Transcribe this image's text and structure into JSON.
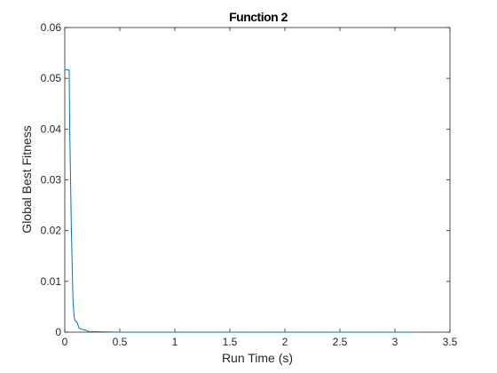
{
  "chart_data": {
    "type": "line",
    "title": "Function 2",
    "xlabel": "Run Time (s)",
    "ylabel": "Global Best Fitness",
    "xlim": [
      0,
      3.5
    ],
    "ylim": [
      0,
      0.06
    ],
    "xticks": [
      0,
      0.5,
      1,
      1.5,
      2,
      2.5,
      3,
      3.5
    ],
    "yticks": [
      0,
      0.01,
      0.02,
      0.03,
      0.04,
      0.05,
      0.06
    ],
    "xtick_labels": [
      "0",
      "0.5",
      "1",
      "1.5",
      "2",
      "2.5",
      "3",
      "3.5"
    ],
    "ytick_labels": [
      "0",
      "0.01",
      "0.02",
      "0.03",
      "0.04",
      "0.05",
      "0.06"
    ],
    "grid": false,
    "box": true,
    "series": [
      {
        "color": "#0072BD",
        "x": [
          0.0,
          0.04,
          0.045,
          0.06,
          0.075,
          0.085,
          0.095,
          0.11,
          0.13,
          0.15,
          0.19,
          0.22,
          0.5,
          1.0,
          1.5,
          2.0,
          2.5,
          3.0,
          3.18
        ],
        "y": [
          0.0517,
          0.0516,
          0.04,
          0.02,
          0.006,
          0.003,
          0.0022,
          0.002,
          0.0008,
          0.0006,
          0.0004,
          0.0001,
          0.0,
          0.0,
          0.0,
          0.0,
          0.0,
          0.0,
          0.0
        ]
      }
    ]
  }
}
